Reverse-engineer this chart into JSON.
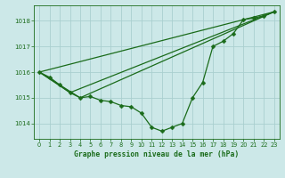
{
  "bg_color": "#cce8e8",
  "grid_color": "#aacfcf",
  "line_color": "#1a6b1a",
  "marker_color": "#1a6b1a",
  "title": "Graphe pression niveau de la mer (hPa)",
  "yticks": [
    1014,
    1015,
    1016,
    1017,
    1018
  ],
  "ylim": [
    1013.4,
    1018.6
  ],
  "xlim": [
    -0.5,
    23.5
  ],
  "series1_x": [
    0,
    1,
    2,
    3,
    4,
    5,
    6,
    7,
    8,
    9,
    10,
    11,
    12,
    13,
    14,
    15,
    16,
    17,
    18,
    19,
    20,
    21,
    22,
    23
  ],
  "series1_y": [
    1016.0,
    1015.8,
    1015.5,
    1015.2,
    1015.0,
    1015.05,
    1014.9,
    1014.85,
    1014.7,
    1014.65,
    1014.4,
    1013.85,
    1013.7,
    1013.85,
    1014.0,
    1015.0,
    1015.6,
    1017.0,
    1017.2,
    1017.5,
    1018.05,
    1018.1,
    1018.2,
    1018.35
  ],
  "line2_x": [
    0,
    23
  ],
  "line2_y": [
    1016.0,
    1018.35
  ],
  "line3_x": [
    0,
    4,
    23
  ],
  "line3_y": [
    1016.0,
    1015.0,
    1018.35
  ],
  "line4_x": [
    0,
    3,
    23
  ],
  "line4_y": [
    1016.0,
    1015.2,
    1018.35
  ],
  "tick_labelsize": 4.8,
  "title_fontsize": 5.8,
  "linewidth": 0.9,
  "markersize": 2.5
}
